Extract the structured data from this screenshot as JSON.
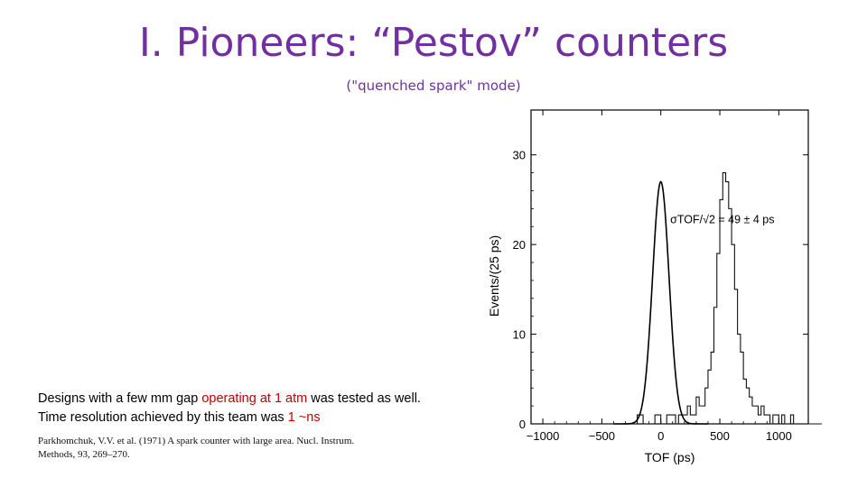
{
  "slide": {
    "title": "I. Pioneers: “Pestov” counters",
    "subtitle": "(\"quenched spark\" mode)",
    "body_line1_a": "Designs with a few mm gap ",
    "body_line1_b": "operating at 1 atm",
    "body_line1_c": " was tested as well.",
    "body_line2_a": "Time resolution achieved by this team was ",
    "body_line2_b": "1 ~ns",
    "ref_line1": "Parkhomchuk, V.V. et al. (1971) A spark counter with large area. Nucl. Instrum.",
    "ref_line2": "Methods, 93, 269–270.",
    "colors": {
      "title": "#7030a0",
      "highlight": "#c00000"
    }
  },
  "chart_data": {
    "type": "line",
    "xlabel": "TOF (ps)",
    "ylabel": "Events/(25 ps)",
    "xlim": [
      -1100,
      1250
    ],
    "ylim": [
      0,
      35
    ],
    "xticks": [
      -1000,
      -500,
      0,
      500,
      1000
    ],
    "yticks": [
      0,
      10,
      20,
      30
    ],
    "annotation": "σTOF/√2 = 49 ± 4 ps",
    "grid": false,
    "histogram": {
      "bin_width": 25,
      "x_start": -1000,
      "values": [
        0,
        0,
        0,
        0,
        0,
        0,
        0,
        0,
        0,
        0,
        0,
        0,
        0,
        0,
        0,
        0,
        0,
        0,
        0,
        0,
        0,
        0,
        0,
        0,
        0,
        0,
        0,
        0,
        0,
        0,
        0,
        0,
        1,
        1,
        0,
        0,
        0,
        0,
        1,
        1,
        0,
        0,
        1,
        1,
        1,
        0,
        1,
        1,
        1,
        2,
        1,
        1,
        3,
        2,
        2,
        4,
        6,
        8,
        13,
        19,
        25,
        28,
        27,
        24,
        20,
        15,
        10,
        8,
        5,
        4,
        3,
        2,
        2,
        1,
        2,
        1,
        1,
        0,
        1,
        1,
        0,
        1,
        0,
        0,
        1,
        0,
        0,
        0,
        0,
        0,
        0,
        0,
        0,
        0,
        0,
        0,
        0,
        0,
        0,
        0,
        0,
        0,
        0,
        0,
        0,
        0,
        0,
        0,
        0,
        0,
        0
      ]
    },
    "fit": {
      "name": "gaussian",
      "mean": 0,
      "sigma": 70,
      "amplitude": 27
    }
  }
}
